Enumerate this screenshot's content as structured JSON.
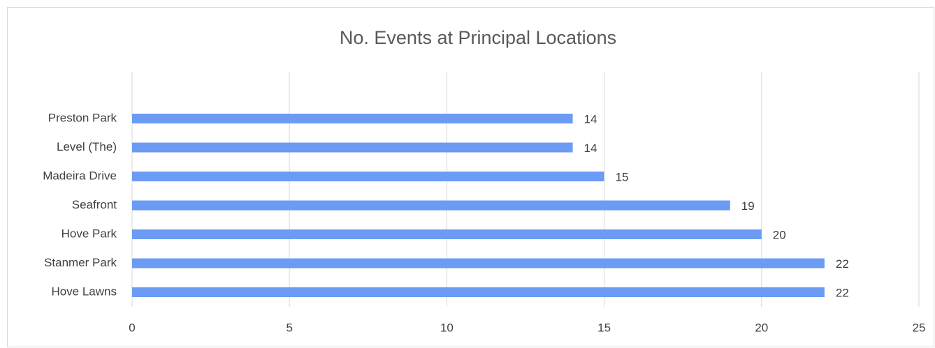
{
  "chart_data": {
    "type": "bar",
    "orientation": "horizontal",
    "title": "No. Events at Principal Locations",
    "categories": [
      "Preston Park",
      "Level (The)",
      "Madeira Drive",
      "Seafront",
      "Hove Park",
      "Stanmer Park",
      "Hove Lawns"
    ],
    "values": [
      14,
      14,
      15,
      19,
      20,
      22,
      22
    ],
    "color": "#6b9bf5",
    "xlim": [
      0,
      25
    ],
    "xticks": [
      0,
      5,
      10,
      15,
      20,
      25
    ],
    "grid": true
  }
}
